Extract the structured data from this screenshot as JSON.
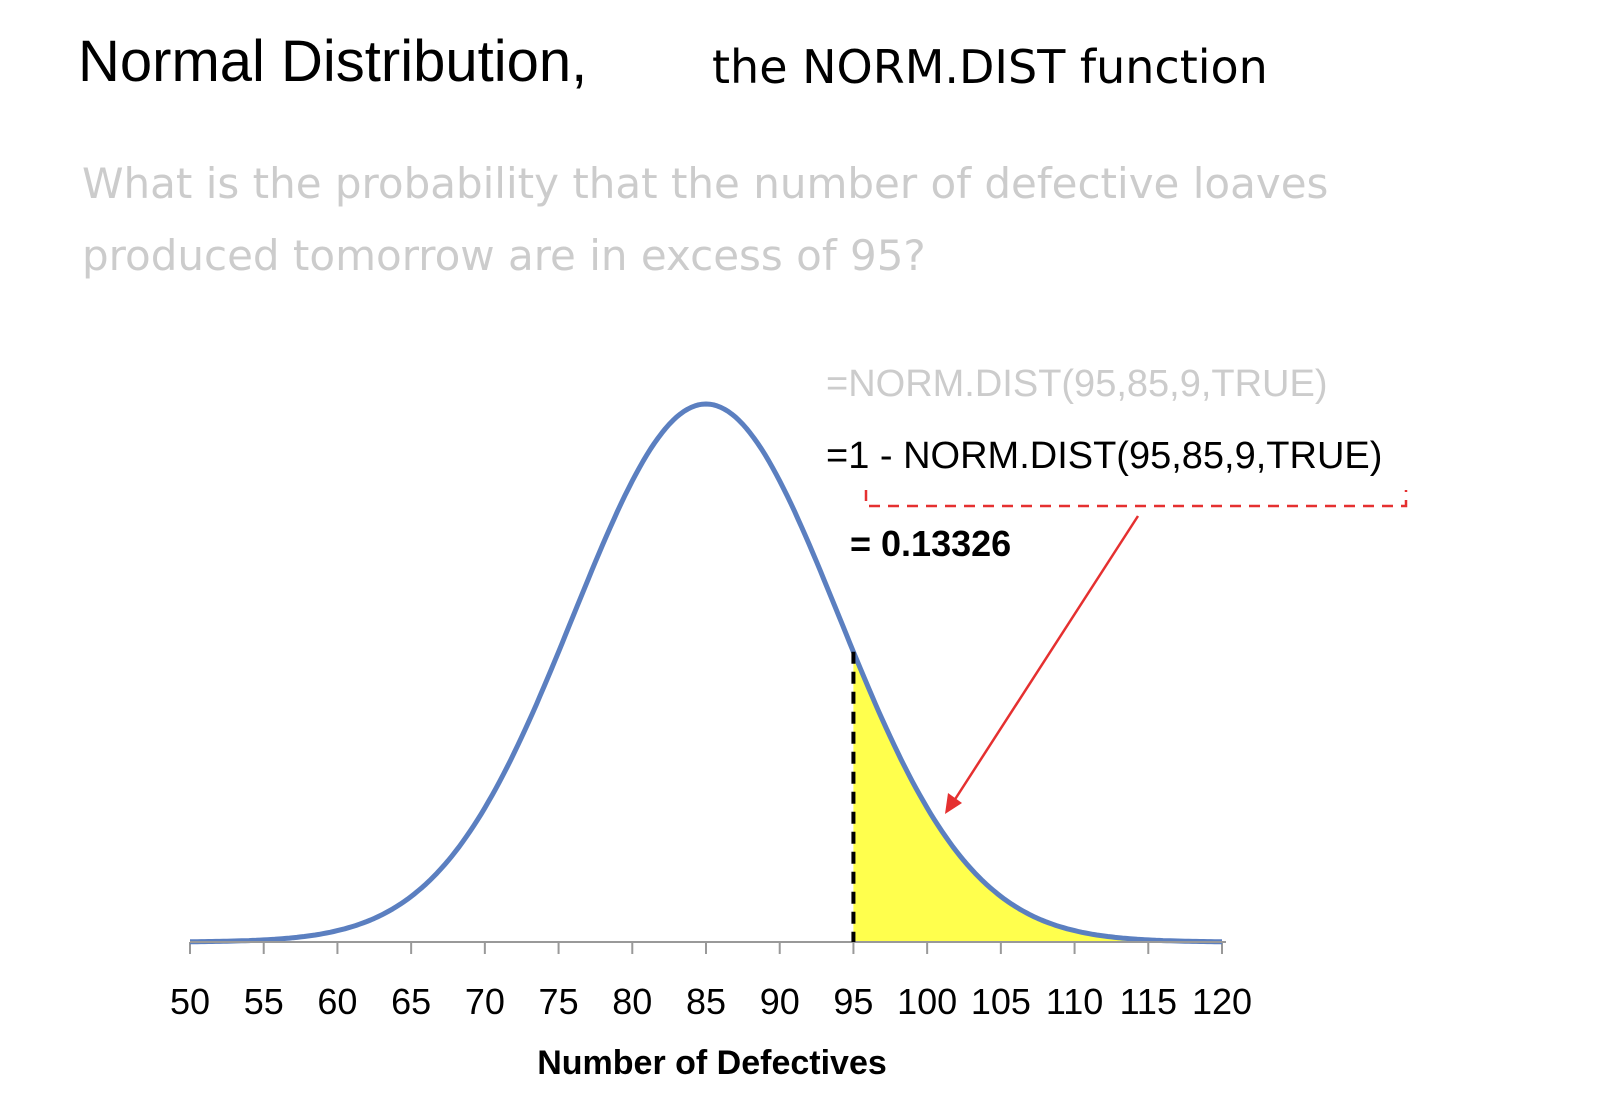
{
  "header": {
    "title": "Normal Distribution,",
    "subtitle": "the NORM.DIST function"
  },
  "question": {
    "line1": "What is the probability that the number of defective loaves",
    "line2": "produced tomorrow are in excess of 95?"
  },
  "annotations": {
    "formula_faded": "=NORM.DIST(95,85,9,TRUE)",
    "formula_main": "=1 - NORM.DIST(95,85,9,TRUE)",
    "result": "= 0.13326"
  },
  "colors": {
    "curve": "#5b7fc0",
    "shade": "#ffff4d",
    "arrow": "#e53030",
    "faded_text": "#cccccc"
  },
  "chart_data": {
    "type": "area",
    "distribution": "normal",
    "mean": 85,
    "sd": 9,
    "threshold": 95,
    "shaded_region": "x > 95",
    "xlim": [
      50,
      120
    ],
    "xticks": [
      50,
      55,
      60,
      65,
      70,
      75,
      80,
      85,
      90,
      95,
      100,
      105,
      110,
      115,
      120
    ],
    "xlabel": "Number of Defectives",
    "result": 0.13326,
    "grid": false
  }
}
